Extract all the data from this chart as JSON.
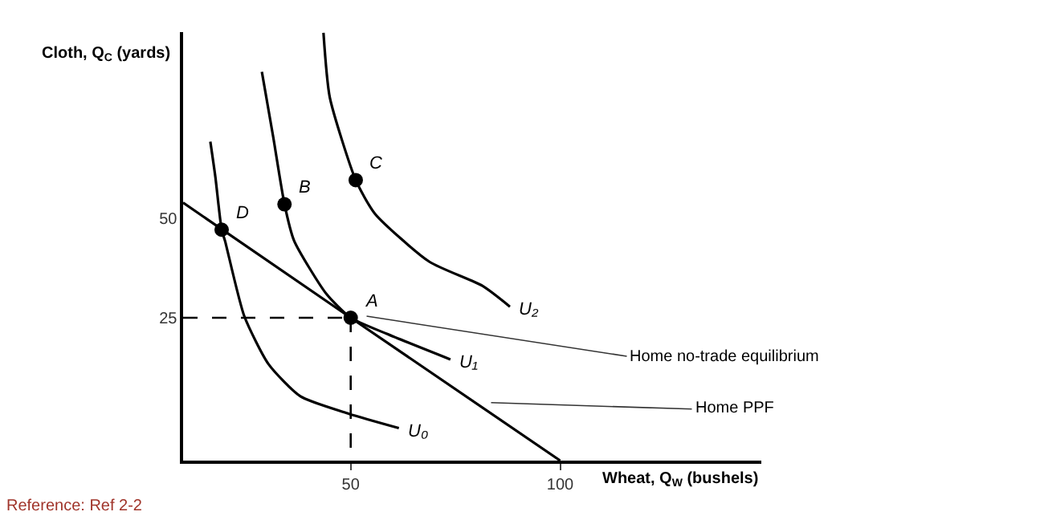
{
  "chart_data": {
    "type": "line",
    "xlabel": "Wheat, Q$_{W}$ (bushels)",
    "ylabel": "Cloth, Q$_{C}$ (yards)",
    "xlim": [
      10,
      148
    ],
    "ylim": [
      -11,
      97
    ],
    "xticks": [
      50,
      100
    ],
    "yticks": [
      25,
      50
    ],
    "series": [
      {
        "color": "#000000",
        "x": [
          10,
          50,
          100
        ],
        "values": [
          54,
          25,
          -11
        ]
      },
      {
        "color": "#000000",
        "line_style": "dashed",
        "x": [
          10,
          50
        ],
        "values": [
          25,
          25
        ]
      },
      {
        "color": "#000000",
        "line_style": "dashed",
        "x": [
          50,
          50
        ],
        "values": [
          25,
          -11
        ]
      },
      {
        "name": "U₀",
        "color": "#000000",
        "x": [
          16.5,
          17.7,
          19.2,
          20,
          24.6,
          30.4,
          38,
          49.6,
          61.5
        ],
        "values": [
          69.4,
          60.5,
          47.2,
          44.4,
          25.4,
          13.3,
          5.2,
          0.8,
          -2.8
        ]
      },
      {
        "name": "U₁",
        "color": "#000000",
        "x": [
          28.8,
          31.5,
          34.2,
          36.5,
          44.2,
          50,
          58.5,
          73.8
        ],
        "values": [
          87,
          70.6,
          53.6,
          44.4,
          31,
          25,
          21,
          14.5
        ]
      },
      {
        "name": "U₂",
        "color": "#000000",
        "x": [
          43.5,
          45,
          51.2,
          55.8,
          68.8,
          81.5,
          88
        ],
        "values": [
          96.8,
          80.6,
          59.7,
          51.2,
          39.1,
          33,
          27.8
        ]
      },
      {
        "type": "scatter",
        "marker": "circle",
        "color": "#000000",
        "x": [
          50,
          34.2,
          51.2,
          19.2
        ],
        "values": [
          25,
          53.6,
          59.7,
          47.2
        ]
      }
    ],
    "annotations": [
      {
        "text": "A",
        "x": 50,
        "y": 25
      },
      {
        "text": "B",
        "x": 34.2,
        "y": 53.6
      },
      {
        "text": "C",
        "x": 51.2,
        "y": 59.7
      },
      {
        "text": "D",
        "x": 19.2,
        "y": 47.2
      },
      {
        "text": "Home no-trade equilibrium",
        "x": 53.8,
        "y": 25.4
      },
      {
        "text": "Home PPF",
        "x": 83.5,
        "y": 3.6
      },
      "Reference: Ref 2-2"
    ]
  }
}
